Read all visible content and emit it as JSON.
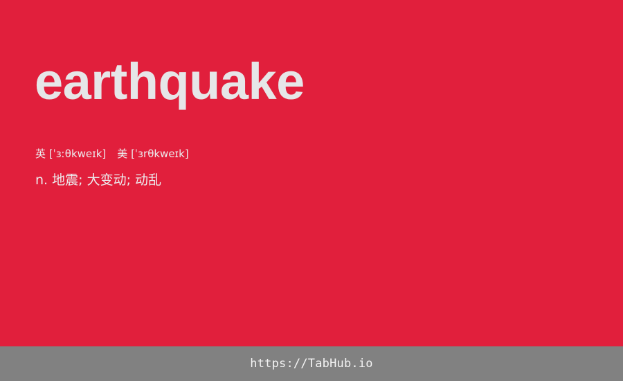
{
  "entry": {
    "word": "earthquake",
    "phonetics": {
      "uk_label": "英",
      "uk": "[ˈɜːθkweɪk]",
      "us_label": "美",
      "us": "[ˈɜrθkweɪk]"
    },
    "definition": {
      "pos": "n.",
      "meaning": "地震; 大变动; 动乱"
    }
  },
  "footer": {
    "link_text": "https://TabHub.io"
  },
  "colors": {
    "background": "#e11f3c",
    "footer_background": "#818181",
    "text": "#e6e6e8"
  }
}
